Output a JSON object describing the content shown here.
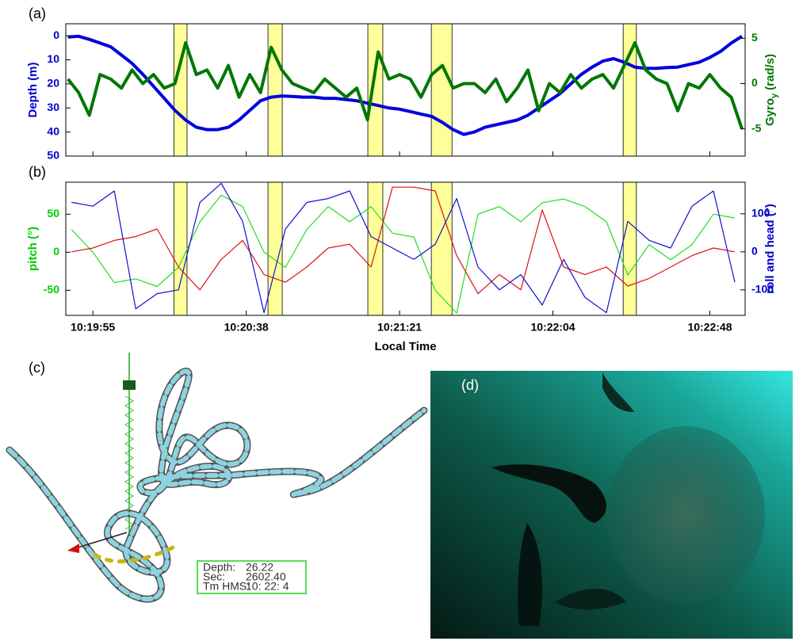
{
  "chart_data": [
    {
      "type": "line",
      "label": "(a)",
      "ylabel": "Depth (m)",
      "y2label": "Gyro",
      "y2label_subscript": "y",
      "y2label_unit": "(rad/s)",
      "ycolor": "#0000cc",
      "y2color": "#007700",
      "xlim": [
        -7.6,
        182.9
      ],
      "xticks": [
        0,
        43,
        86,
        129,
        173
      ],
      "ylim": [
        50,
        -5
      ],
      "yticks": [
        0,
        10,
        20,
        30,
        40,
        50
      ],
      "y2lim": [
        -8,
        6.6
      ],
      "y2ticks": [
        -5,
        0,
        5
      ],
      "highlights": [
        [
          22.7,
          26.4
        ],
        [
          49.1,
          53.1
        ],
        [
          77.1,
          81.3
        ],
        [
          94.9,
          100.7
        ],
        [
          148.7,
          152.4
        ]
      ],
      "highlight_color": "#ffff99",
      "x": [
        -7,
        -4,
        -1,
        2,
        5,
        8,
        11,
        14,
        17,
        20,
        23,
        26,
        29,
        32,
        35,
        38,
        41,
        44,
        47,
        50,
        53,
        56,
        59,
        62,
        65,
        68,
        71,
        74,
        77,
        80,
        83,
        86,
        89,
        92,
        95,
        98,
        101,
        104,
        107,
        110,
        113,
        116,
        119,
        122,
        125,
        128,
        131,
        134,
        137,
        140,
        143,
        146,
        149,
        152,
        155,
        158,
        161,
        164,
        167,
        170,
        173,
        176,
        179,
        182
      ],
      "series": [
        {
          "color": "#0000dd",
          "values": [
            0.5,
            0.2,
            1.5,
            3,
            4.6,
            8,
            11.5,
            16,
            21,
            26,
            31,
            35,
            38,
            39,
            39,
            38,
            35,
            31,
            27,
            25.5,
            25,
            25.2,
            25.5,
            25.5,
            26,
            26,
            26.5,
            27,
            28,
            29,
            30,
            30.5,
            31.5,
            32.5,
            33.5,
            36,
            39,
            41,
            40,
            38,
            37,
            36,
            35,
            33,
            30,
            27,
            24,
            20,
            16,
            13,
            10.5,
            9.5,
            11,
            13,
            13.5,
            13.5,
            13.2,
            13,
            12,
            11,
            9,
            6.5,
            3,
            0.2
          ]
        },
        {
          "color": "#007700",
          "axis": "y2",
          "values": [
            0.5,
            -1,
            -3.5,
            1,
            0.5,
            -0.5,
            1.5,
            0,
            1,
            -0.5,
            0,
            4.5,
            1,
            1.5,
            -0.5,
            2,
            -1.5,
            1,
            -1,
            4,
            1.5,
            0,
            -0.5,
            -1,
            0.5,
            -0.5,
            -1.5,
            -0.5,
            -4,
            3.5,
            0.5,
            1,
            0.5,
            -1.5,
            1,
            2,
            -0.5,
            0,
            0,
            -1,
            0.5,
            -2,
            -0.5,
            1.5,
            -3,
            0,
            -1,
            1,
            -0.5,
            0.5,
            1,
            -0.5,
            2,
            4.5,
            1.5,
            0.5,
            0,
            -3,
            0,
            -0.5,
            1,
            -0.5,
            -1.5,
            -5
          ]
        }
      ]
    },
    {
      "type": "line",
      "label": "(b)",
      "ylabel": "pitch (°)",
      "y2label": "roll and head (°)",
      "xlabel": "Local Time",
      "ycolor": "#00cc00",
      "y2color": "#0000cc",
      "xlim": [
        -7.6,
        182.9
      ],
      "xticks": [
        {
          "value": 0,
          "label": "10:19:55"
        },
        {
          "value": 43,
          "label": "10:20:38"
        },
        {
          "value": 86,
          "label": "10:21:21"
        },
        {
          "value": 129,
          "label": "10:22:04"
        },
        {
          "value": 173,
          "label": "10:22:48"
        }
      ],
      "ylim": [
        -83,
        92
      ],
      "yticks": [
        -50,
        0,
        50
      ],
      "y2lim": [
        -167,
        183
      ],
      "y2ticks": [
        -100,
        0,
        100
      ],
      "highlights": [
        [
          22.7,
          26.4
        ],
        [
          49.1,
          53.1
        ],
        [
          77.1,
          81.3
        ],
        [
          94.9,
          100.7
        ],
        [
          148.7,
          152.4
        ]
      ],
      "highlight_color": "#ffff99",
      "x": [
        -6,
        0,
        6,
        12,
        18,
        24,
        30,
        36,
        42,
        48,
        54,
        60,
        66,
        72,
        78,
        84,
        90,
        96,
        102,
        108,
        114,
        120,
        126,
        132,
        138,
        144,
        150,
        156,
        162,
        168,
        174,
        180
      ],
      "series": [
        {
          "color": "#22dd22",
          "values": [
            30,
            0,
            -40,
            -35,
            -45,
            -20,
            40,
            75,
            60,
            0,
            -20,
            30,
            60,
            40,
            60,
            25,
            20,
            -50,
            -80,
            50,
            60,
            40,
            65,
            70,
            60,
            40,
            -30,
            10,
            -10,
            10,
            50,
            45
          ]
        },
        {
          "color": "#dd1111",
          "axis": "y2",
          "values": [
            0,
            10,
            30,
            40,
            60,
            -40,
            -100,
            -20,
            30,
            -60,
            -80,
            -40,
            10,
            20,
            -40,
            170,
            170,
            160,
            -10,
            -110,
            -60,
            -100,
            110,
            -40,
            -60,
            -40,
            -90,
            -70,
            -40,
            -10,
            10,
            0
          ]
        },
        {
          "color": "#1111cc",
          "axis": "y2",
          "values": [
            130,
            120,
            160,
            -150,
            -110,
            -100,
            130,
            180,
            80,
            -160,
            60,
            130,
            140,
            160,
            40,
            10,
            -20,
            20,
            140,
            -40,
            -100,
            -60,
            -140,
            -20,
            -120,
            -160,
            80,
            30,
            10,
            120,
            160,
            -80
          ]
        }
      ]
    }
  ],
  "trajectory_view": {
    "label": "(c)",
    "info": [
      [
        "Depth:",
        "26.22"
      ],
      [
        "Sec:",
        "2602.40"
      ],
      [
        "Tm  HMS:",
        "10:  22:  4"
      ]
    ]
  },
  "photo": {
    "label": "(d)"
  }
}
